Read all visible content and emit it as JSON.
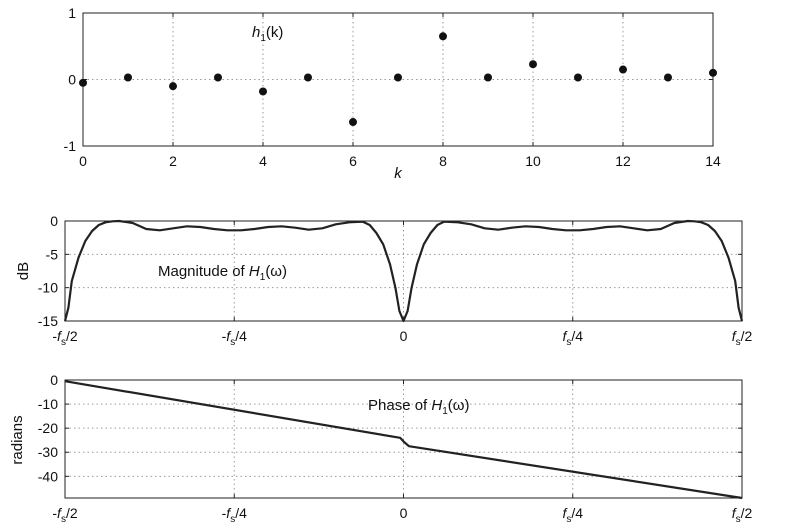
{
  "chart_data": [
    {
      "type": "scatter",
      "annotation": {
        "base": "h",
        "sub": "1",
        "rest": "(k)"
      },
      "xlabel": "k",
      "ylabel": "",
      "xlim": [
        0,
        14
      ],
      "ylim": [
        -1,
        1
      ],
      "x_ticks": [
        0,
        2,
        4,
        6,
        8,
        10,
        12,
        14
      ],
      "y_ticks": [
        1,
        0,
        -1
      ],
      "grid": true,
      "x": [
        0,
        1,
        2,
        3,
        4,
        5,
        6,
        7,
        8,
        9,
        10,
        11,
        12,
        13,
        14
      ],
      "y": [
        -0.05,
        0.03,
        -0.1,
        0.03,
        -0.18,
        0.03,
        -0.64,
        0.03,
        0.65,
        0.03,
        0.23,
        0.03,
        0.15,
        0.03,
        0.1
      ]
    },
    {
      "type": "line",
      "annotation": {
        "base": "Magnitude of ",
        "italic": "H",
        "sub": "1",
        "rest": "(ω)"
      },
      "xlabel": "",
      "ylabel": "dB",
      "xlim": [
        -0.5,
        0.5
      ],
      "ylim": [
        -15,
        0
      ],
      "y_ticks": [
        0,
        -5,
        -10,
        -15
      ],
      "x_ticks": [
        {
          "value": -0.5,
          "pre": "-",
          "f": "f",
          "sub": "s",
          "post": "/2"
        },
        {
          "value": -0.25,
          "pre": "-",
          "f": "f",
          "sub": "s",
          "post": "/4"
        },
        {
          "value": 0,
          "plain": "0"
        },
        {
          "value": 0.25,
          "pre": "",
          "f": "f",
          "sub": "s",
          "post": "/4"
        },
        {
          "value": 0.5,
          "pre": "",
          "f": "f",
          "sub": "s",
          "post": "/2"
        }
      ],
      "grid": true,
      "x": [
        -0.5,
        -0.495,
        -0.49,
        -0.48,
        -0.47,
        -0.46,
        -0.45,
        -0.44,
        -0.43,
        -0.42,
        -0.4,
        -0.38,
        -0.36,
        -0.34,
        -0.32,
        -0.3,
        -0.28,
        -0.26,
        -0.24,
        -0.22,
        -0.2,
        -0.18,
        -0.16,
        -0.14,
        -0.12,
        -0.1,
        -0.08,
        -0.06,
        -0.05,
        -0.04,
        -0.03,
        -0.02,
        -0.012,
        -0.006,
        0,
        0.006,
        0.012,
        0.02,
        0.03,
        0.04,
        0.05,
        0.06,
        0.08,
        0.1,
        0.12,
        0.14,
        0.16,
        0.18,
        0.2,
        0.22,
        0.24,
        0.26,
        0.28,
        0.3,
        0.32,
        0.34,
        0.36,
        0.38,
        0.4,
        0.42,
        0.43,
        0.44,
        0.45,
        0.46,
        0.47,
        0.48,
        0.49,
        0.495,
        0.5
      ],
      "y": [
        -15,
        -13,
        -9,
        -5.5,
        -3,
        -1.5,
        -0.6,
        -0.2,
        -0.05,
        0,
        -0.3,
        -1.2,
        -1.4,
        -1.1,
        -0.8,
        -0.9,
        -1.2,
        -1.4,
        -1.4,
        -1.2,
        -0.9,
        -0.8,
        -1.0,
        -1.3,
        -1.1,
        -0.5,
        -0.2,
        -0.1,
        -0.6,
        -1.8,
        -3.5,
        -6.5,
        -10,
        -13.5,
        -15,
        -13.5,
        -10,
        -6.5,
        -3.5,
        -1.8,
        -0.6,
        -0.1,
        -0.2,
        -0.5,
        -1.1,
        -1.3,
        -1.0,
        -0.8,
        -0.9,
        -1.2,
        -1.4,
        -1.4,
        -1.2,
        -0.9,
        -0.8,
        -1.1,
        -1.4,
        -1.2,
        -0.3,
        0,
        -0.05,
        -0.2,
        -0.6,
        -1.5,
        -3,
        -5.5,
        -9,
        -13,
        -15
      ]
    },
    {
      "type": "line",
      "annotation": {
        "base": "Phase of ",
        "italic": "H",
        "sub": "1",
        "rest": "(ω)"
      },
      "xlabel": "",
      "ylabel": "radians",
      "xlim": [
        -0.5,
        0.5
      ],
      "ylim": [
        -49,
        0
      ],
      "y_ticks": [
        0,
        -10,
        -20,
        -30,
        -40
      ],
      "x_ticks": [
        {
          "value": -0.5,
          "pre": "-",
          "f": "f",
          "sub": "s",
          "post": "/2"
        },
        {
          "value": -0.25,
          "pre": "-",
          "f": "f",
          "sub": "s",
          "post": "/4"
        },
        {
          "value": 0,
          "plain": "0"
        },
        {
          "value": 0.25,
          "pre": "",
          "f": "f",
          "sub": "s",
          "post": "/4"
        },
        {
          "value": 0.5,
          "pre": "",
          "f": "f",
          "sub": "s",
          "post": "/2"
        }
      ],
      "grid": true,
      "x": [
        -0.5,
        -0.005,
        0,
        0.008,
        0.5
      ],
      "y": [
        -0.5,
        -24,
        -25.5,
        -27.5,
        -49
      ]
    }
  ]
}
